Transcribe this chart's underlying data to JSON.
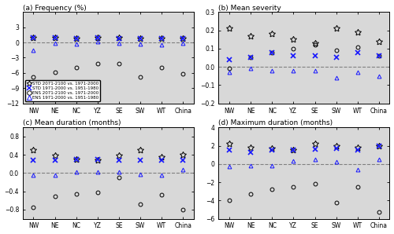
{
  "categories": [
    "NW",
    "NE",
    "NC",
    "YZ",
    "SE",
    "SW",
    "WT",
    "China"
  ],
  "panels": [
    {
      "title": "(a) Frequency (%)",
      "ylim": [
        -12,
        6
      ],
      "yticks": [
        -12,
        -9,
        -6,
        -3,
        0,
        3
      ],
      "std_2071": [
        1.0,
        1.0,
        0.8,
        1.0,
        1.0,
        0.8,
        0.8,
        0.8
      ],
      "std_1971": [
        1.0,
        1.0,
        0.8,
        1.0,
        0.8,
        0.8,
        0.8,
        0.8
      ],
      "ens_2071": [
        -6.8,
        -5.8,
        -5.0,
        -4.2,
        -4.2,
        -6.8,
        -5.0,
        -6.2
      ],
      "ens_1971": [
        -1.5,
        -0.2,
        -0.3,
        0.1,
        -0.1,
        -0.3,
        -0.5,
        -0.1
      ]
    },
    {
      "title": "(b) Mean severity",
      "ylim": [
        -0.2,
        0.3
      ],
      "yticks": [
        -0.2,
        -0.1,
        0.0,
        0.1,
        0.2,
        0.3
      ],
      "std_2071": [
        0.21,
        0.17,
        0.18,
        0.15,
        0.13,
        0.21,
        0.19,
        0.14
      ],
      "std_1971": [
        0.04,
        0.05,
        0.08,
        0.06,
        0.06,
        0.05,
        0.08,
        0.06
      ],
      "ens_2071": [
        -0.01,
        0.05,
        0.08,
        0.1,
        0.12,
        0.09,
        0.11,
        0.06
      ],
      "ens_1971": [
        -0.03,
        -0.01,
        -0.02,
        -0.02,
        -0.02,
        -0.06,
        -0.03,
        -0.05
      ]
    },
    {
      "title": "(c) Mean duration (months)",
      "ylim": [
        -1.0,
        1.0
      ],
      "yticks": [
        -0.8,
        -0.4,
        0.0,
        0.4,
        0.8
      ],
      "std_2071": [
        0.5,
        0.38,
        0.3,
        0.28,
        0.38,
        0.5,
        0.35,
        0.4
      ],
      "std_1971": [
        0.28,
        0.28,
        0.3,
        0.3,
        0.28,
        0.28,
        0.28,
        0.28
      ],
      "ens_2071": [
        -0.75,
        -0.5,
        -0.45,
        -0.42,
        -0.1,
        -0.68,
        -0.48,
        -0.8
      ],
      "ens_1971": [
        -0.05,
        -0.05,
        0.02,
        0.02,
        0.02,
        -0.02,
        -0.05,
        0.08
      ]
    },
    {
      "title": "(d) Maximum duration (months)",
      "ylim": [
        -6,
        4
      ],
      "yticks": [
        -6,
        -4,
        -2,
        0,
        2,
        4
      ],
      "std_2071": [
        2.2,
        1.8,
        1.7,
        1.5,
        2.2,
        2.0,
        1.8,
        2.0
      ],
      "std_1971": [
        1.5,
        1.3,
        1.5,
        1.5,
        1.6,
        1.7,
        1.5,
        2.0
      ],
      "ens_2071": [
        -4.0,
        -3.3,
        -2.8,
        -2.5,
        -2.2,
        -4.2,
        -2.5,
        -5.3
      ],
      "ens_1971": [
        -0.3,
        -0.2,
        -0.2,
        0.3,
        0.5,
        0.2,
        -0.6,
        0.5
      ]
    }
  ],
  "legend_labels": [
    "STD 2071-2100 vs. 1971-2000",
    "STD 1971-2000 vs. 1951-1980",
    "ENS 2071-2100 vs. 1971-2000",
    "ENS 1971-2000 vs. 1951-1980"
  ],
  "color_black": "#000000",
  "color_blue": "#1414FF",
  "bg_color": "#d8d8d8"
}
